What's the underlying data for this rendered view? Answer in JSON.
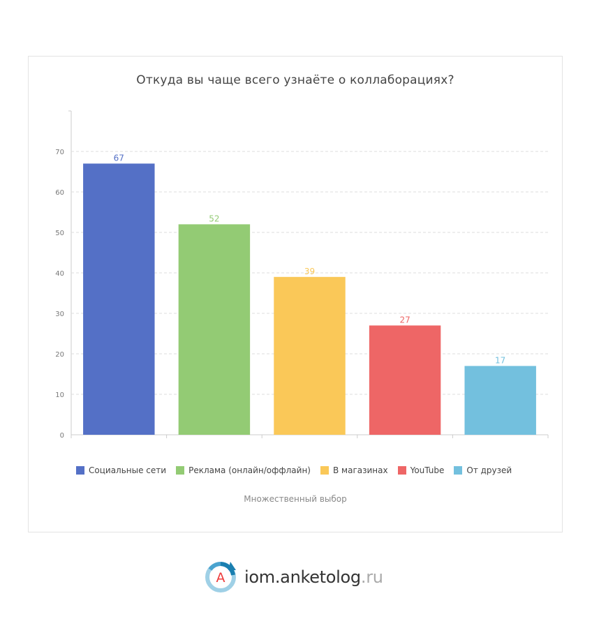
{
  "chart_data": {
    "type": "bar",
    "title": "Откуда вы чаще всего узнаёте о коллаборациях?",
    "categories": [
      "Социальные сети",
      "Реклама (онлайн/оффлайн)",
      "В магазинах",
      "YouTube",
      "От друзей"
    ],
    "values": [
      67,
      52,
      39,
      27,
      17
    ],
    "colors": [
      "#5470c6",
      "#93cb74",
      "#fac858",
      "#ee6666",
      "#73c0de"
    ],
    "ylim": [
      0,
      80
    ],
    "yticks": [
      0,
      10,
      20,
      30,
      40,
      50,
      60,
      70
    ],
    "grid": true,
    "legend_position": "bottom",
    "note": "Множественный выбор"
  },
  "footer": {
    "logo_letter": "A",
    "site_name": "iom.anketolog",
    "site_tld": ".ru"
  }
}
